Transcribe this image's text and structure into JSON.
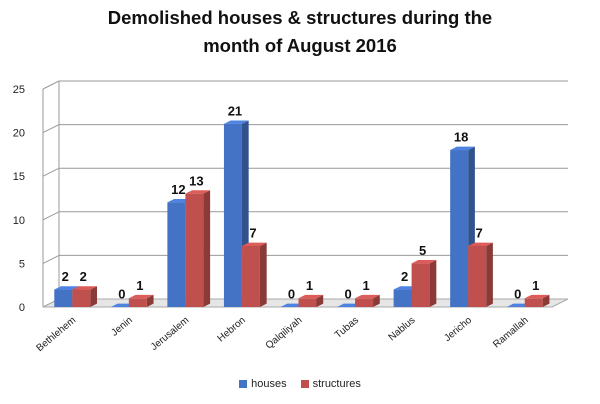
{
  "title_line1": "Demolished houses & structures during the",
  "title_line2": "month of August 2016",
  "chart_data": {
    "type": "bar",
    "title": "Demolished houses & structures during the month of August 2016",
    "categories": [
      "Bethlehem",
      "Jenin",
      "Jerusalem",
      "Hebron",
      "Qalqiliyah",
      "Tubas",
      "Nablus",
      "Jericho",
      "Ramallah"
    ],
    "series": [
      {
        "name": "houses",
        "color": "#4472c4",
        "values": [
          2,
          0,
          12,
          21,
          0,
          0,
          2,
          18,
          0
        ]
      },
      {
        "name": "structures",
        "color": "#c0504d",
        "values": [
          2,
          1,
          13,
          7,
          1,
          1,
          5,
          7,
          1
        ]
      }
    ],
    "ylim": [
      0,
      25
    ],
    "yticks": [
      0,
      5,
      10,
      15,
      20,
      25
    ],
    "grid": true,
    "legend": "bottom",
    "xlabel": "",
    "ylabel": ""
  }
}
